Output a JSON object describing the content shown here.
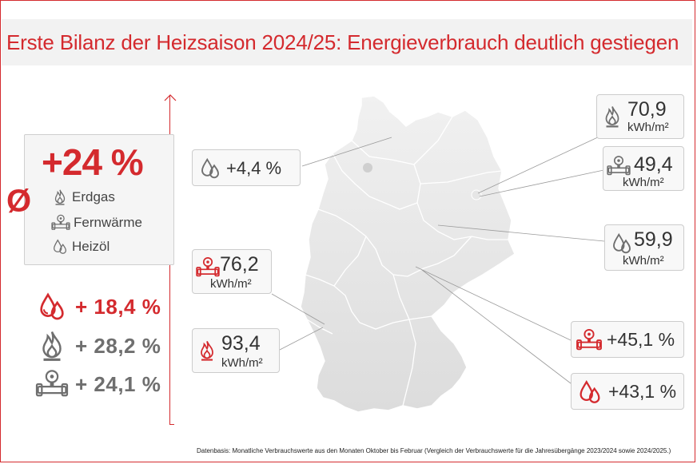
{
  "title": "Erste Bilanz der Heizsaison 2024/25: Energieverbrauch deutlich gestiegen",
  "colors": {
    "accent": "#d42a2e",
    "text": "#333333",
    "grey_icon": "#6f6f6f"
  },
  "average": {
    "symbol": "Ø",
    "value": "+24 %",
    "legend": [
      {
        "icon": "flame-icon",
        "label": "Erdgas"
      },
      {
        "icon": "heat-pipe-icon",
        "label": "Fernwärme"
      },
      {
        "icon": "oil-drops-icon",
        "label": "Heizöl"
      }
    ]
  },
  "summary": [
    {
      "icon": "oil-drops-icon",
      "value": "+ 18,4 %",
      "color": "#d42a2e"
    },
    {
      "icon": "flame-icon",
      "value": "+ 28,2 %",
      "color": "#6f6f6f"
    },
    {
      "icon": "heat-pipe-icon",
      "value": "+ 24,1 %",
      "color": "#6f6f6f"
    }
  ],
  "callouts": [
    {
      "id": "north-west-oil",
      "icon": "oil-drops-icon",
      "icon_color": "#6f6f6f",
      "value": "+4,4 %",
      "unit": ""
    },
    {
      "id": "berlin-gas",
      "icon": "flame-icon",
      "icon_color": "#6f6f6f",
      "value": "70,9",
      "unit": "kWh/m²"
    },
    {
      "id": "berlin-district",
      "icon": "heat-pipe-icon",
      "icon_color": "#6f6f6f",
      "value": "49,4",
      "unit": "kWh/m²"
    },
    {
      "id": "east-oil",
      "icon": "oil-drops-icon",
      "icon_color": "#6f6f6f",
      "value": "59,9",
      "unit": "kWh/m²"
    },
    {
      "id": "west-district",
      "icon": "heat-pipe-icon",
      "icon_color": "#d42a2e",
      "value": "76,2",
      "unit": "kWh/m²"
    },
    {
      "id": "southwest-gas",
      "icon": "flame-icon",
      "icon_color": "#d42a2e",
      "value": "93,4",
      "unit": "kWh/m²"
    },
    {
      "id": "center-district",
      "icon": "heat-pipe-icon",
      "icon_color": "#d42a2e",
      "value": "+45,1 %",
      "unit": ""
    },
    {
      "id": "center-oil",
      "icon": "oil-drops-icon",
      "icon_color": "#d42a2e",
      "value": "+43,1 %",
      "unit": ""
    }
  ],
  "footnote": "Datenbasis: Monatliche Verbrauchswerte aus den Monaten Oktober bis Februar (Vergleich der Verbrauchswerte für die Jahresübergänge 2023/2024 sowie 2024/2025.)",
  "chart_data": {
    "type": "table",
    "title": "Erste Bilanz der Heizsaison 2024/25: Energieverbrauch deutlich gestiegen",
    "average_change_percent": 24,
    "by_energy_source": [
      {
        "source": "Heizöl",
        "change_percent": 18.4
      },
      {
        "source": "Erdgas",
        "change_percent": 28.2
      },
      {
        "source": "Fernwärme",
        "change_percent": 24.1
      }
    ],
    "map_callouts": [
      {
        "source": "Heizöl",
        "value": 4.4,
        "unit": "%"
      },
      {
        "source": "Erdgas",
        "value": 70.9,
        "unit": "kWh/m²"
      },
      {
        "source": "Fernwärme",
        "value": 49.4,
        "unit": "kWh/m²"
      },
      {
        "source": "Heizöl",
        "value": 59.9,
        "unit": "kWh/m²"
      },
      {
        "source": "Fernwärme",
        "value": 76.2,
        "unit": "kWh/m²"
      },
      {
        "source": "Erdgas",
        "value": 93.4,
        "unit": "kWh/m²"
      },
      {
        "source": "Fernwärme",
        "value": 45.1,
        "unit": "%"
      },
      {
        "source": "Heizöl",
        "value": 43.1,
        "unit": "%"
      }
    ]
  }
}
